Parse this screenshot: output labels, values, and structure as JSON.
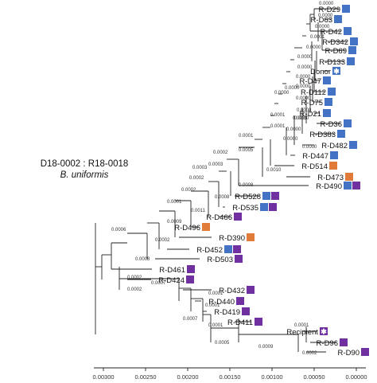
{
  "title": {
    "line1": "D18-0002 : R18-0018",
    "line2": "B. uniformis"
  },
  "colors": {
    "blue": "#4472c4",
    "purple": "#7030a0",
    "orange": "#e07b39",
    "line": "#222222"
  },
  "markers": {
    "star": "star-icon"
  },
  "axis": {
    "ticks": [
      "0.00300",
      "0.00250",
      "0.00200",
      "0.00150",
      "0.00100",
      "0.00050",
      "0.00000"
    ]
  },
  "tips": [
    {
      "label": "R-D29",
      "marks": [
        "blue"
      ]
    },
    {
      "label": "R-D63",
      "marks": [
        "blue"
      ]
    },
    {
      "label": "R-D42",
      "marks": [
        "blue"
      ]
    },
    {
      "label": "R-D342",
      "marks": [
        "blue"
      ]
    },
    {
      "label": "R-D69",
      "marks": [
        "blue"
      ]
    },
    {
      "label": "R-D133",
      "marks": [
        "blue"
      ]
    },
    {
      "label": "Donor",
      "marks": [
        "star-blue"
      ]
    },
    {
      "label": "R-D47",
      "marks": [
        "blue"
      ]
    },
    {
      "label": "R-D112",
      "marks": [
        "blue"
      ]
    },
    {
      "label": "R-D75",
      "marks": [
        "blue"
      ]
    },
    {
      "label": "R-D21",
      "marks": [
        "blue"
      ]
    },
    {
      "label": "R-D36",
      "marks": [
        "blue"
      ]
    },
    {
      "label": "R-D383",
      "marks": [
        "blue"
      ]
    },
    {
      "label": "R-D482",
      "marks": [
        "blue"
      ]
    },
    {
      "label": "R-D447",
      "marks": [
        "blue"
      ]
    },
    {
      "label": "R-D514",
      "marks": [
        "orange"
      ]
    },
    {
      "label": "R-D473",
      "marks": [
        "orange"
      ]
    },
    {
      "label": "R-D490",
      "marks": [
        "blue",
        "purple"
      ]
    },
    {
      "label": "R-D528",
      "marks": [
        "blue",
        "purple"
      ]
    },
    {
      "label": "R-D535",
      "marks": [
        "blue",
        "purple"
      ]
    },
    {
      "label": "R-D466",
      "marks": [
        "purple"
      ]
    },
    {
      "label": "R-D496",
      "marks": [
        "orange"
      ]
    },
    {
      "label": "R-D390",
      "marks": [
        "orange"
      ]
    },
    {
      "label": "R-D452",
      "marks": [
        "blue",
        "purple"
      ]
    },
    {
      "label": "R-D503",
      "marks": [
        "purple"
      ]
    },
    {
      "label": "R-D461",
      "marks": [
        "purple"
      ]
    },
    {
      "label": "R-D424",
      "marks": [
        "purple"
      ]
    },
    {
      "label": "R-D432",
      "marks": [
        "purple"
      ]
    },
    {
      "label": "R-D440",
      "marks": [
        "purple"
      ]
    },
    {
      "label": "R-D419",
      "marks": [
        "purple"
      ]
    },
    {
      "label": "R-D411",
      "marks": [
        "purple"
      ]
    },
    {
      "label": "Recipient",
      "marks": [
        "star-purple"
      ]
    },
    {
      "label": "R-D96",
      "marks": [
        "purple"
      ]
    },
    {
      "label": "R-D90",
      "marks": [
        "purple"
      ]
    }
  ],
  "branch_lengths": [
    "0.0000",
    "0.0000",
    "0.0000",
    "0.0001",
    "0.0000",
    "0.0000",
    "0.0000",
    "0.0000",
    "0.0000",
    "0.0000",
    "0.0000",
    "0.0000",
    "0.0000",
    "0.0000",
    "0.0000",
    "0.0000",
    "0.0001",
    "0.0000",
    "0.0005",
    "0.0001",
    "0.0001",
    "0.0005",
    "0.0010",
    "0.0002",
    "0.0003",
    "0.0008",
    "0.0003",
    "0.0008",
    "0.0002",
    "0.0002",
    "0.0011",
    "0.0009",
    "0.0001",
    "0.0006",
    "0.0002",
    "0.0008",
    "0.0007",
    "0.0002",
    "0.0002",
    "0.0001",
    "0.0001",
    "0.0007",
    "0.0001",
    "0.0005",
    "0.0001",
    "0.0009",
    "0.0002"
  ]
}
